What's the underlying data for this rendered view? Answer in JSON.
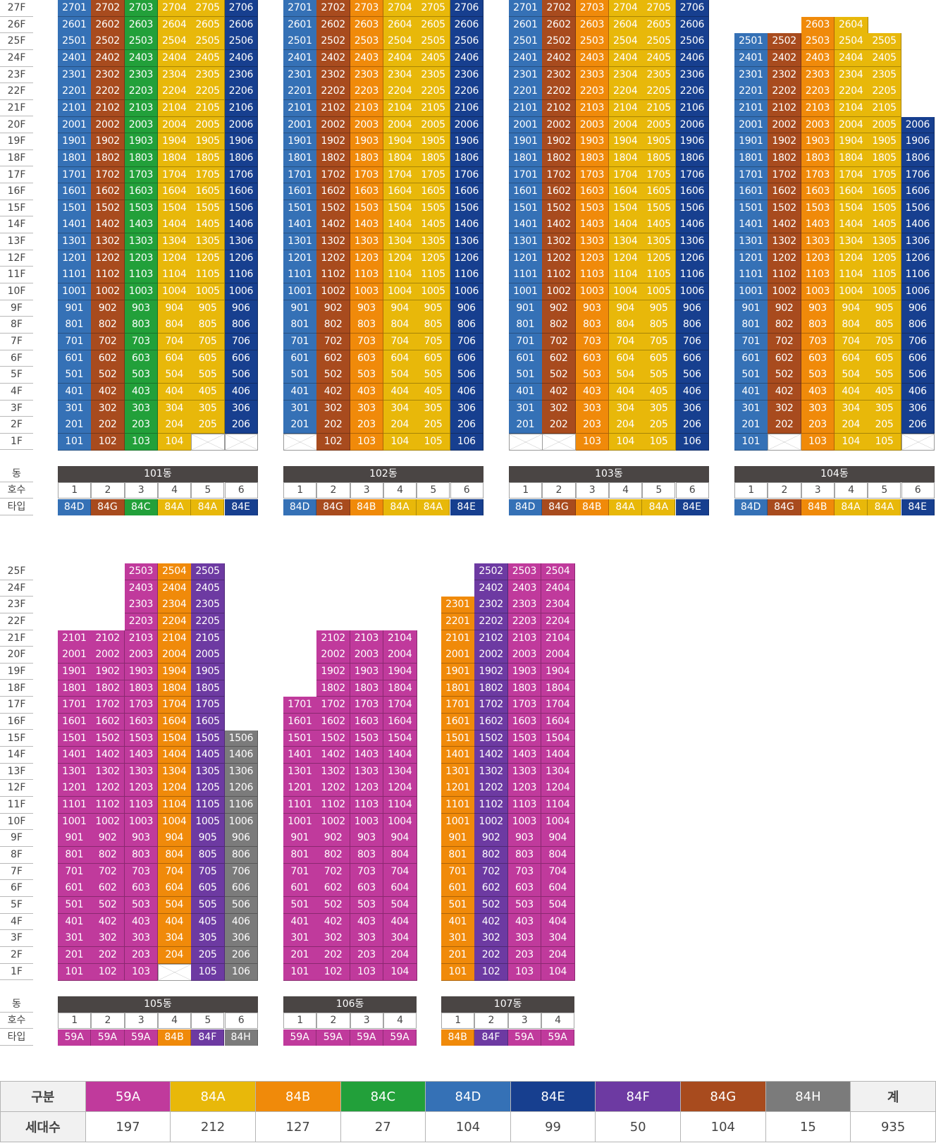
{
  "colors": {
    "59A": "#c03a9c",
    "84A": "#e8b80a",
    "84B": "#f08a0a",
    "84C": "#22a03a",
    "84D": "#3571b6",
    "84E": "#173f8f",
    "84F": "#6d3aa2",
    "84G": "#a84b1e",
    "84H": "#7b7b7b"
  },
  "labels": {
    "dong": "동",
    "hosu": "호수",
    "type": "타입"
  },
  "buildings": [
    {
      "name": "101동",
      "row": 1,
      "types": [
        "84D",
        "84G",
        "84C",
        "84A",
        "84A",
        "84E"
      ],
      "units": [
        101,
        102,
        103,
        104,
        0,
        0
      ],
      "tops": [
        27,
        27,
        27,
        27,
        27,
        27
      ]
    },
    {
      "name": "102동",
      "row": 1,
      "types": [
        "84D",
        "84G",
        "84B",
        "84A",
        "84A",
        "84E"
      ],
      "units": [
        0,
        102,
        103,
        104,
        105,
        106
      ],
      "tops": [
        27,
        27,
        27,
        27,
        27,
        27
      ]
    },
    {
      "name": "103동",
      "row": 1,
      "types": [
        "84D",
        "84G",
        "84B",
        "84A",
        "84A",
        "84E"
      ],
      "units": [
        0,
        0,
        103,
        104,
        105,
        106
      ],
      "tops": [
        27,
        27,
        27,
        27,
        27,
        27
      ]
    },
    {
      "name": "104동",
      "row": 1,
      "types": [
        "84D",
        "84G",
        "84B",
        "84A",
        "84A",
        "84E"
      ],
      "units": [
        101,
        0,
        103,
        104,
        105,
        0
      ],
      "tops": [
        25,
        25,
        26,
        26,
        25,
        20
      ]
    },
    {
      "name": "105동",
      "row": 2,
      "types": [
        "59A",
        "59A",
        "59A",
        "84B",
        "84F",
        "84H"
      ],
      "units": [
        101,
        102,
        103,
        0,
        105,
        106
      ],
      "tops": [
        21,
        21,
        25,
        25,
        25,
        15
      ]
    },
    {
      "name": "106동",
      "row": 2,
      "types": [
        "59A",
        "59A",
        "59A",
        "59A"
      ],
      "units": [
        101,
        102,
        103,
        104
      ],
      "tops": [
        17,
        21,
        21,
        21
      ]
    },
    {
      "name": "107동",
      "row": 2,
      "types": [
        "84B",
        "84F",
        "59A",
        "59A"
      ],
      "units": [
        101,
        102,
        103,
        104
      ],
      "tops": [
        23,
        25,
        25,
        25
      ]
    }
  ],
  "legend": {
    "header_label": "구분",
    "count_label": "세대수",
    "total_label": "계",
    "total_value": "935",
    "items": [
      {
        "type": "59A",
        "count": "197"
      },
      {
        "type": "84A",
        "count": "212"
      },
      {
        "type": "84B",
        "count": "127"
      },
      {
        "type": "84C",
        "count": "27"
      },
      {
        "type": "84D",
        "count": "104"
      },
      {
        "type": "84E",
        "count": "99"
      },
      {
        "type": "84F",
        "count": "50"
      },
      {
        "type": "84G",
        "count": "104"
      },
      {
        "type": "84H",
        "count": "15"
      }
    ]
  }
}
